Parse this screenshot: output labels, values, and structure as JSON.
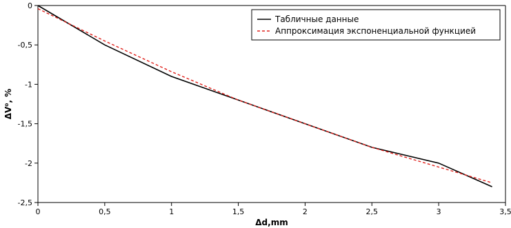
{
  "chart_data": {
    "type": "line",
    "title": "",
    "xlabel": "Δd,mm",
    "ylabel": "ΔV⁰, %",
    "xlim": [
      0,
      3.5
    ],
    "ylim": [
      -2.5,
      0
    ],
    "x_ticks": [
      0,
      0.5,
      1,
      1.5,
      2,
      2.5,
      3,
      3.5
    ],
    "y_ticks": [
      0,
      -0.5,
      -1,
      -1.5,
      -2,
      -2.5
    ],
    "x_tick_labels": [
      "0",
      "0,5",
      "1",
      "1,5",
      "2",
      "2,5",
      "3",
      "3,5"
    ],
    "y_tick_labels": [
      "0",
      "-0,5",
      "-1",
      "-1,5",
      "-2",
      "-2,5"
    ],
    "grid": false,
    "legend_position": "top-right",
    "series": [
      {
        "name": "Табличные данные",
        "style": "solid",
        "color": "#000000",
        "x": [
          0,
          0.5,
          1,
          1.5,
          2,
          2.5,
          3,
          3.4
        ],
        "y": [
          0,
          -0.5,
          -0.9,
          -1.2,
          -1.5,
          -1.8,
          -2.0,
          -2.3
        ]
      },
      {
        "name": "Аппроксимация экспоненциальной функцией",
        "style": "dashed",
        "color": "#e0201b",
        "x": [
          0,
          0.5,
          1,
          1.5,
          2,
          2.5,
          3,
          3.4
        ],
        "y": [
          -0.04,
          -0.45,
          -0.84,
          -1.2,
          -1.5,
          -1.8,
          -2.05,
          -2.25
        ]
      }
    ]
  }
}
